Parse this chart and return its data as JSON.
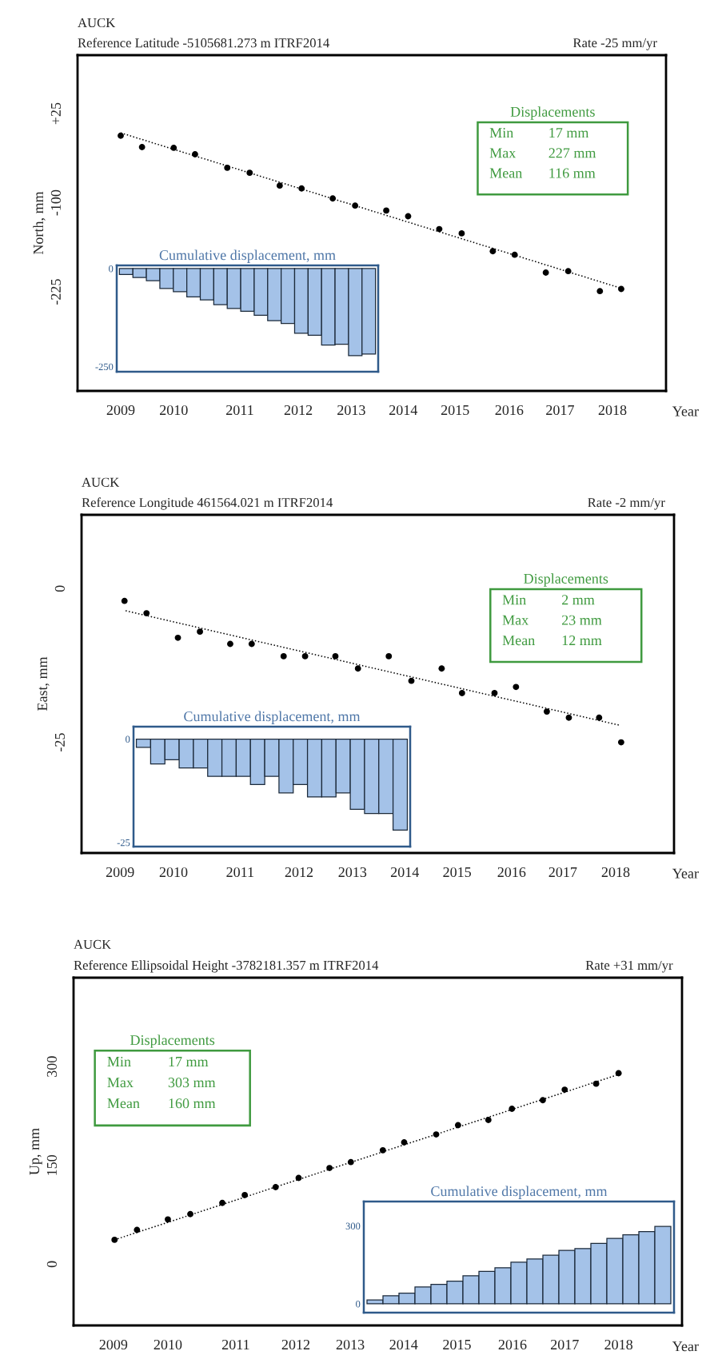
{
  "chart_data": [
    {
      "type": "scatter",
      "title": "AUCK",
      "subtitle": "Reference Latitude -5105681.273 m ITRF2014",
      "xlabel": "Year",
      "ylabel": "North, mm",
      "annotations": [
        "Rate -25 mm/yr",
        "Displacements",
        "Min",
        "17 mm",
        "Max",
        "227 mm",
        "Mean",
        "116 mm"
      ],
      "series": [
        {
          "type": "scatter",
          "color": "#000000",
          "marker": "circle",
          "x": [
            2009.0,
            2009.39,
            2009.97,
            2010.36,
            2010.95,
            2011.36,
            2011.91,
            2012.31,
            2012.88,
            2013.29,
            2013.86,
            2014.26,
            2014.83,
            2015.24,
            2015.81,
            2016.21,
            2016.78,
            2017.19,
            2017.77,
            2018.16
          ],
          "values": [
            -6,
            -22,
            -23,
            -32,
            -51,
            -58,
            -76,
            -80,
            -94,
            -104,
            -111,
            -119,
            -137,
            -143,
            -168,
            -173,
            -198,
            -196,
            -224,
            -221
          ]
        },
        {
          "type": "line",
          "color": "#000000",
          "line_style": "dotted",
          "x": [
            2009.0,
            2018.16
          ],
          "values": [
            -2,
            -220
          ]
        }
      ],
      "xlim": [
        2008.21,
        2018.98
      ],
      "ylim": [
        -364,
        107
      ],
      "xticks": [
        {
          "value": 2009,
          "label": "2009"
        },
        {
          "value": 2009.97,
          "label": "2010"
        },
        {
          "value": 2011.18,
          "label": "2011"
        },
        {
          "value": 2012.25,
          "label": "2012"
        },
        {
          "value": 2013.22,
          "label": "2013"
        },
        {
          "value": 2014.17,
          "label": "2014"
        },
        {
          "value": 2015.12,
          "label": "2015"
        },
        {
          "value": 2016.11,
          "label": "2016"
        },
        {
          "value": 2017.04,
          "label": "2017"
        },
        {
          "value": 2018,
          "label": "2018"
        }
      ],
      "yticks": [
        {
          "value": 25,
          "label": "+25"
        },
        -100,
        -225
      ]
    },
    {
      "type": "bar",
      "title": "Cumulative displacement, mm",
      "categories": [
        null,
        null,
        null,
        null,
        null,
        null,
        null,
        null,
        null,
        null,
        null,
        null,
        null,
        null,
        null,
        null,
        null,
        null,
        null
      ],
      "values": [
        -15,
        -23,
        -31,
        -51,
        -59,
        -72,
        -80,
        -92,
        -102,
        -109,
        -119,
        -133,
        -140,
        -165,
        -170,
        -195,
        -193,
        -222,
        -218
      ],
      "color": "#a4c2e8",
      "ylim": [
        -263,
        8
      ],
      "yticks": [
        0,
        -250
      ],
      "tick_labels": "y"
    },
    {
      "type": "scatter",
      "title": "AUCK",
      "subtitle": "Reference Longitude 461564.021 m ITRF2014",
      "xlabel": "Year",
      "ylabel": "East, mm",
      "annotations": [
        "Rate -2 mm/yr",
        "Displacements",
        "Min",
        "2 mm",
        "Max",
        "23 mm",
        "Mean",
        "12 mm"
      ],
      "series": [
        {
          "type": "scatter",
          "color": "#000000",
          "marker": "circle",
          "x": [
            2009.08,
            2009.48,
            2010.05,
            2010.45,
            2011.0,
            2011.39,
            2011.97,
            2012.36,
            2012.91,
            2013.32,
            2013.88,
            2014.29,
            2014.84,
            2015.21,
            2015.8,
            2016.19,
            2016.75,
            2017.15,
            2017.7,
            2018.1
          ],
          "values": [
            -2,
            -4,
            -8,
            -7,
            -9,
            -9,
            -11,
            -11,
            -11,
            -13,
            -11,
            -15,
            -13,
            -17,
            -17,
            -16,
            -20,
            -21,
            -21,
            -25
          ]
        },
        {
          "type": "line",
          "color": "#000000",
          "line_style": "dotted",
          "x": [
            2009.1,
            2018.06
          ],
          "values": [
            -3.6,
            -22.2
          ]
        }
      ],
      "xlim": [
        2008.3,
        2019.06
      ],
      "ylim": [
        -43,
        12
      ],
      "xticks": [
        {
          "value": 2009,
          "label": "2009"
        },
        {
          "value": 2009.97,
          "label": "2010"
        },
        {
          "value": 2011.18,
          "label": "2011"
        },
        {
          "value": 2012.25,
          "label": "2012"
        },
        {
          "value": 2013.22,
          "label": "2013"
        },
        {
          "value": 2014.17,
          "label": "2014"
        },
        {
          "value": 2015.12,
          "label": "2015"
        },
        {
          "value": 2016.11,
          "label": "2016"
        },
        {
          "value": 2017.04,
          "label": "2017"
        },
        {
          "value": 2018,
          "label": "2018"
        }
      ],
      "yticks": [
        0,
        -25
      ]
    },
    {
      "type": "bar",
      "title": "Cumulative displacement, mm",
      "categories": [
        null,
        null,
        null,
        null,
        null,
        null,
        null,
        null,
        null,
        null,
        null,
        null,
        null,
        null,
        null,
        null,
        null,
        null,
        null
      ],
      "values": [
        -2,
        -6,
        -5,
        -7,
        -7,
        -9,
        -9,
        -9,
        -11,
        -9,
        -13,
        -11,
        -14,
        -14,
        -13,
        -17,
        -18,
        -18,
        -22
      ],
      "color": "#a4c2e8",
      "ylim": [
        -26,
        3
      ],
      "yticks": [
        0,
        -25
      ],
      "tick_labels": "y"
    },
    {
      "type": "scatter",
      "title": "AUCK",
      "subtitle": "Reference Ellipsoidal Height -3782181.357 m ITRF2014",
      "xlabel": "Year",
      "ylabel": "Up, mm",
      "annotations": [
        "Rate +31 mm/yr",
        "Displacements",
        "Min",
        "17 mm",
        "Max",
        "303 mm",
        "Mean",
        "160 mm"
      ],
      "series": [
        {
          "type": "scatter",
          "color": "#000000",
          "marker": "circle",
          "x": [
            2009.02,
            2009.42,
            2009.97,
            2010.37,
            2010.94,
            2011.34,
            2011.89,
            2012.3,
            2012.85,
            2013.23,
            2013.8,
            2014.18,
            2014.75,
            2015.14,
            2015.68,
            2016.1,
            2016.65,
            2017.04,
            2017.6,
            2018.0
          ],
          "values": [
            37,
            52,
            68,
            76,
            93,
            105,
            117,
            131,
            146,
            155,
            173,
            185,
            197,
            211,
            219,
            236,
            249,
            265,
            274,
            290
          ]
        },
        {
          "type": "line",
          "color": "#000000",
          "line_style": "dotted",
          "x": [
            2009.02,
            2018.0
          ],
          "values": [
            37,
            288
          ]
        }
      ],
      "xlim": [
        2008.29,
        2019.13
      ],
      "ylim": [
        -93,
        435
      ],
      "xticks": [
        {
          "value": 2009,
          "label": "2009"
        },
        {
          "value": 2009.97,
          "label": "2010"
        },
        {
          "value": 2011.18,
          "label": "2011"
        },
        {
          "value": 2012.25,
          "label": "2012"
        },
        {
          "value": 2013.22,
          "label": "2013"
        },
        {
          "value": 2014.17,
          "label": "2014"
        },
        {
          "value": 2015.12,
          "label": "2015"
        },
        {
          "value": 2016.11,
          "label": "2016"
        },
        {
          "value": 2017.04,
          "label": "2017"
        },
        {
          "value": 2018,
          "label": "2018"
        }
      ],
      "yticks": [
        300,
        150,
        0
      ]
    },
    {
      "type": "bar",
      "title": "Cumulative displacement, mm",
      "categories": [
        null,
        null,
        null,
        null,
        null,
        null,
        null,
        null,
        null,
        null,
        null,
        null,
        null,
        null,
        null,
        null,
        null,
        null,
        null
      ],
      "values": [
        15,
        31,
        41,
        65,
        75,
        87,
        108,
        125,
        139,
        160,
        173,
        187,
        206,
        213,
        233,
        252,
        266,
        278,
        298
      ],
      "color": "#a4c2e8",
      "ylim": [
        -34,
        394
      ],
      "yticks": [
        300,
        0
      ],
      "tick_labels": "y"
    }
  ]
}
